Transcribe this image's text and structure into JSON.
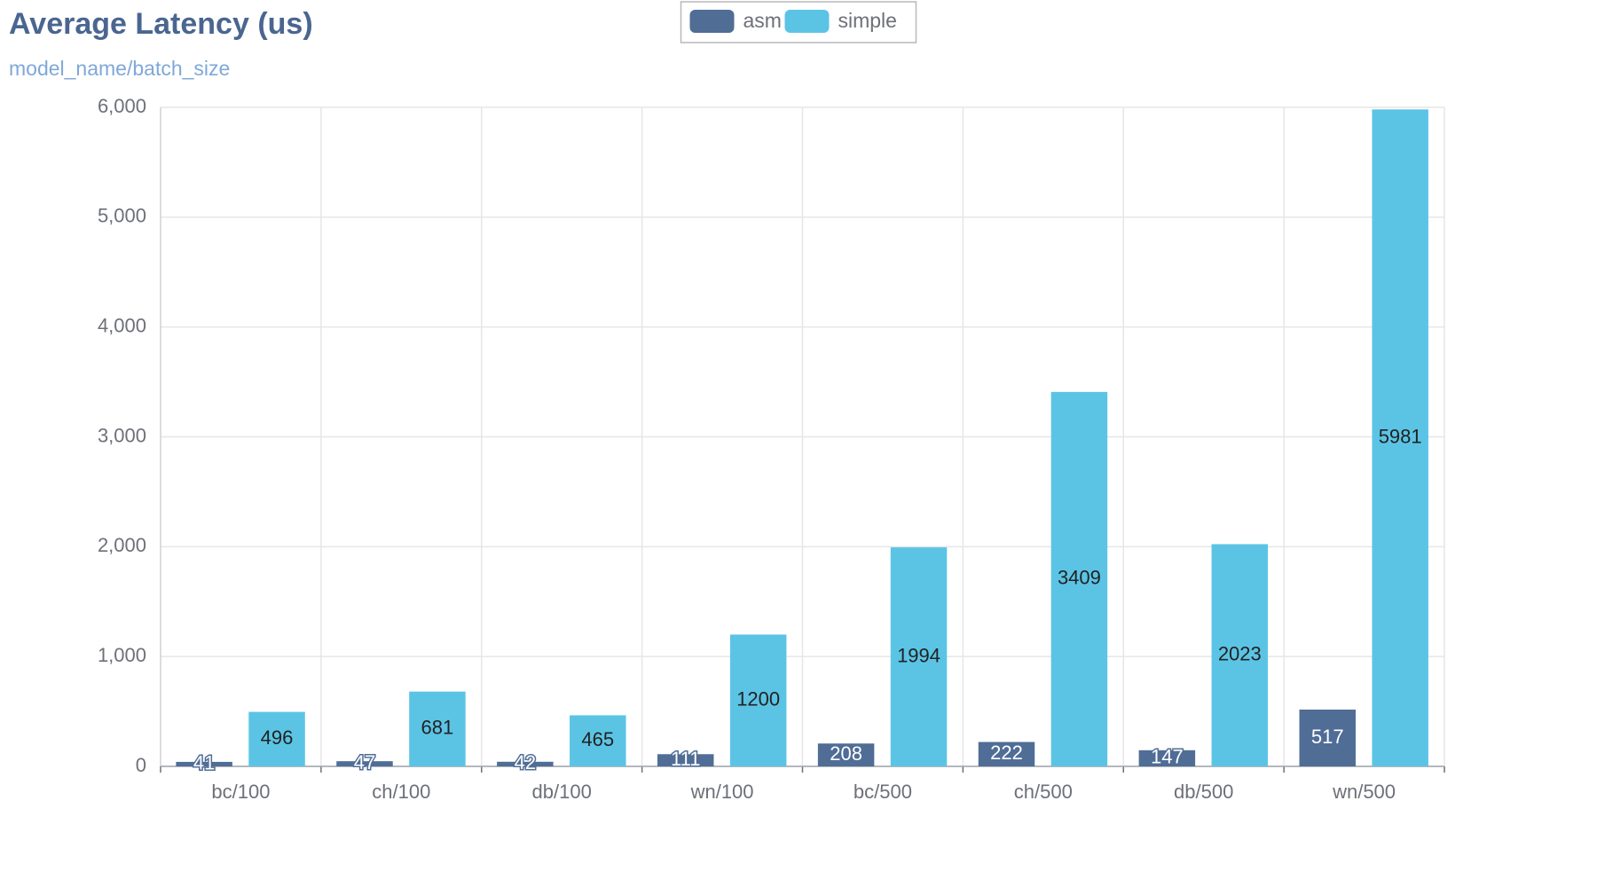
{
  "chart_data": {
    "type": "bar",
    "title": "Average Latency (us)",
    "subtitle": "model_name/batch_size",
    "categories": [
      "bc/100",
      "ch/100",
      "db/100",
      "wn/100",
      "bc/500",
      "ch/500",
      "db/500",
      "wn/500"
    ],
    "series": [
      {
        "name": "asm",
        "color": "#506d96",
        "values": [
          41,
          47,
          42,
          111,
          208,
          222,
          147,
          517
        ]
      },
      {
        "name": "simple",
        "color": "#5bc4e5",
        "values": [
          496,
          681,
          465,
          1200,
          1994,
          3409,
          2023,
          5981
        ]
      }
    ],
    "ylim": [
      0,
      6000
    ],
    "yticks": [
      0,
      {
        "value": 1000,
        "label": "1,000"
      },
      {
        "value": 2000,
        "label": "2,000"
      },
      {
        "value": 3000,
        "label": "3,000"
      },
      {
        "value": 4000,
        "label": "4,000"
      },
      {
        "value": 5000,
        "label": "5,000"
      },
      {
        "value": 6000,
        "label": "6,000"
      }
    ],
    "grid": true,
    "legend": "top"
  }
}
